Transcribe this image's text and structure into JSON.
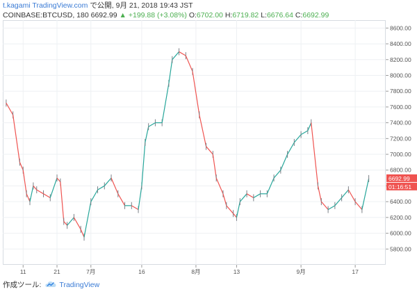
{
  "header": {
    "line1": {
      "user": "t.kagami",
      "site": "TradingView.com",
      "published": "で公開, 9月 21, 2018 19:43 JST"
    },
    "line2": {
      "symbol": "COINBASE:BTCUSD, 180",
      "last": "6692.99",
      "change_arrow": "▲",
      "change": "+199.88 (+3.08%)",
      "o_label": "O:",
      "o": "6702.00",
      "h_label": "H:",
      "h": "6719.82",
      "l_label": "L:",
      "l": "6676.64",
      "c_label": "C:",
      "c": "6692.99"
    }
  },
  "footer": {
    "label": "作成ツール:",
    "brand": "TradingView",
    "logo_icon": "tradingview-cloud-icon"
  },
  "colors": {
    "up": "#26a69a",
    "down": "#ef5350",
    "price_badge": "#ef5350",
    "accent": "#3a7bd5"
  },
  "chart_data": {
    "type": "candlestick-line",
    "title": "",
    "xlabel": "",
    "ylabel": "",
    "ylim": [
      5600,
      8700
    ],
    "y_ticks": [
      "5800.00",
      "6000.00",
      "6200.00",
      "6400.00",
      "6600.00",
      "6800.00",
      "7000.00",
      "7200.00",
      "7400.00",
      "7600.00",
      "7800.00",
      "8000.00",
      "8200.00",
      "8400.00",
      "8600.00"
    ],
    "x_ticks": [
      "11",
      "21",
      "7月",
      "16",
      "8月",
      "13",
      "9月",
      "17"
    ],
    "x_tick_dates": [
      "2018-06-11",
      "2018-06-21",
      "2018-07-01",
      "2018-07-16",
      "2018-08-01",
      "2018-08-13",
      "2018-09-01",
      "2018-09-17"
    ],
    "price_label": "6692.99",
    "countdown_label": "01:16:51",
    "dates": [
      "2018-06-06",
      "2018-06-08",
      "2018-06-10",
      "2018-06-11",
      "2018-06-12",
      "2018-06-13",
      "2018-06-14",
      "2018-06-15",
      "2018-06-17",
      "2018-06-19",
      "2018-06-21",
      "2018-06-22",
      "2018-06-23",
      "2018-06-24",
      "2018-06-26",
      "2018-06-28",
      "2018-06-29",
      "2018-07-01",
      "2018-07-03",
      "2018-07-05",
      "2018-07-07",
      "2018-07-09",
      "2018-07-11",
      "2018-07-13",
      "2018-07-15",
      "2018-07-16",
      "2018-07-17",
      "2018-07-18",
      "2018-07-20",
      "2018-07-22",
      "2018-07-24",
      "2018-07-25",
      "2018-07-27",
      "2018-07-29",
      "2018-07-31",
      "2018-08-02",
      "2018-08-04",
      "2018-08-06",
      "2018-08-07",
      "2018-08-09",
      "2018-08-10",
      "2018-08-12",
      "2018-08-13",
      "2018-08-14",
      "2018-08-16",
      "2018-08-18",
      "2018-08-20",
      "2018-08-22",
      "2018-08-24",
      "2018-08-26",
      "2018-08-28",
      "2018-08-30",
      "2018-09-01",
      "2018-09-03",
      "2018-09-04",
      "2018-09-06",
      "2018-09-07",
      "2018-09-09",
      "2018-09-11",
      "2018-09-13",
      "2018-09-15",
      "2018-09-17",
      "2018-09-19",
      "2018-09-21"
    ],
    "values": [
      7650,
      7500,
      6900,
      6800,
      6500,
      6400,
      6600,
      6550,
      6500,
      6450,
      6700,
      6650,
      6150,
      6100,
      6200,
      6050,
      5950,
      6400,
      6550,
      6600,
      6700,
      6500,
      6350,
      6350,
      6300,
      6600,
      7150,
      7350,
      7400,
      7400,
      7900,
      8200,
      8300,
      8250,
      8050,
      7500,
      7100,
      7000,
      6700,
      6500,
      6350,
      6250,
      6200,
      6400,
      6500,
      6450,
      6500,
      6500,
      6700,
      6800,
      7000,
      7150,
      7250,
      7300,
      7400,
      6600,
      6400,
      6300,
      6350,
      6450,
      6550,
      6400,
      6300,
      6692.99
    ]
  }
}
